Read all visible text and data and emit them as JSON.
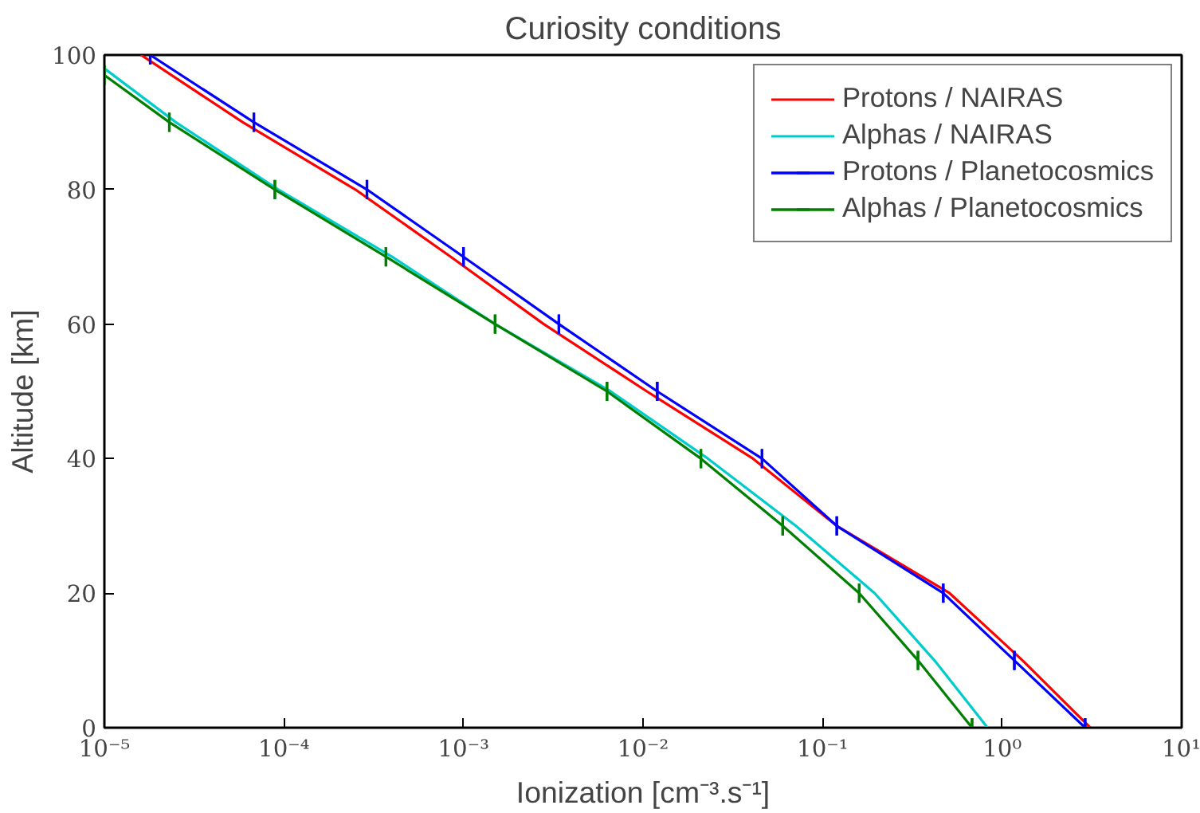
{
  "chart_data": {
    "type": "line",
    "title": "Curiosity conditions",
    "xlabel": "Ionization [cm⁻³.s⁻¹]",
    "ylabel": "Altitude [km]",
    "log": "x",
    "grid": false,
    "legend": "top right",
    "marker": "none",
    "line_style": "solid",
    "xlim": [
      1e-05,
      10
    ],
    "ylim": [
      0,
      100
    ],
    "xticks": [
      {
        "value": 1e-05,
        "label": "10⁻⁵"
      },
      {
        "value": 0.0001,
        "label": "10⁻⁴"
      },
      {
        "value": 0.001,
        "label": "10⁻³"
      },
      {
        "value": 0.01,
        "label": "10⁻²"
      },
      {
        "value": 0.1,
        "label": "10⁻¹"
      },
      {
        "value": 1,
        "label": "10⁰"
      },
      {
        "value": 10,
        "label": "10¹"
      }
    ],
    "yticks": [
      0,
      20,
      40,
      60,
      80,
      100
    ],
    "series": [
      {
        "name": "Protons / NAIRAS",
        "color": "#ff0000",
        "x": [
          1.6e-05,
          5.9e-05,
          0.00025,
          0.00085,
          0.0028,
          0.0105,
          0.041,
          0.12,
          0.51,
          1.3,
          3.1
        ],
        "values": [
          100,
          90,
          80,
          70,
          60,
          50,
          40,
          30,
          20,
          10,
          0
        ]
      },
      {
        "name": "Alphas / NAIRAS",
        "color": "#00cccc",
        "x": [
          1e-05,
          2.5e-05,
          9.3e-05,
          0.0004,
          0.0015,
          0.0066,
          0.023,
          0.071,
          0.195,
          0.42,
          0.83
        ],
        "values": [
          98,
          90,
          80,
          70,
          60,
          50,
          40,
          30,
          20,
          10,
          0
        ]
      },
      {
        "name": "Protons / Planetocosmics",
        "color": "#0000ff",
        "x": [
          1.8e-05,
          6.8e-05,
          0.00029,
          0.001,
          0.0034,
          0.012,
          0.046,
          0.12,
          0.47,
          1.17,
          2.9
        ],
        "values": [
          100,
          90,
          80,
          70,
          60,
          50,
          40,
          30,
          20,
          10,
          0
        ],
        "xerrors": [
          0,
          0,
          0,
          0,
          0,
          0,
          0,
          0,
          0,
          0,
          0
        ]
      },
      {
        "name": "Alphas / Planetocosmics",
        "color": "#008000",
        "x": [
          1e-05,
          2.3e-05,
          8.9e-05,
          0.00037,
          0.0015,
          0.0063,
          0.021,
          0.06,
          0.16,
          0.34,
          0.68
        ],
        "values": [
          97,
          90,
          80,
          70,
          60,
          50,
          40,
          30,
          20,
          10,
          0
        ],
        "xerrors": [
          0,
          0,
          0,
          0,
          0,
          0,
          0,
          0,
          0,
          0,
          0
        ]
      }
    ]
  }
}
